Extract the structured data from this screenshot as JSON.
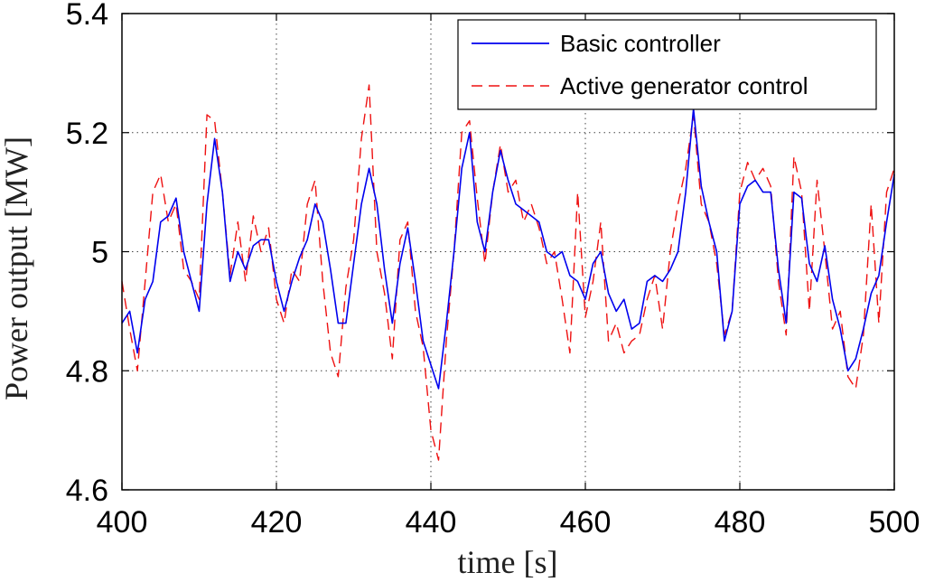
{
  "chart_data": {
    "type": "line",
    "title": "",
    "xlabel": "time [s]",
    "ylabel": "Power output [MW]",
    "xlim": [
      400,
      500
    ],
    "ylim": [
      4.6,
      5.4
    ],
    "xticks": [
      400,
      420,
      440,
      460,
      480,
      500
    ],
    "yticks": [
      4.6,
      4.8,
      5,
      5.2,
      5.4
    ],
    "xtick_labels": [
      "400",
      "420",
      "440",
      "460",
      "480",
      "500"
    ],
    "ytick_labels": [
      "4.6",
      "4.8",
      "5",
      "5.2",
      "5.4"
    ],
    "grid": true,
    "legend_position": "top-right",
    "series": [
      {
        "name": "Basic controller",
        "color": "#0000ee",
        "style": "solid",
        "x": [
          400,
          401,
          402,
          403,
          404,
          405,
          406,
          407,
          408,
          409,
          410,
          411,
          412,
          413,
          414,
          415,
          416,
          417,
          418,
          419,
          420,
          421,
          422,
          423,
          424,
          425,
          426,
          427,
          428,
          429,
          430,
          431,
          432,
          433,
          434,
          435,
          436,
          437,
          438,
          439,
          440,
          441,
          442,
          443,
          444,
          445,
          446,
          447,
          448,
          449,
          450,
          451,
          452,
          453,
          454,
          455,
          456,
          457,
          458,
          459,
          460,
          461,
          462,
          463,
          464,
          465,
          466,
          467,
          468,
          469,
          470,
          471,
          472,
          473,
          474,
          475,
          476,
          477,
          478,
          479,
          480,
          481,
          482,
          483,
          484,
          485,
          486,
          487,
          488,
          489,
          490,
          491,
          492,
          493,
          494,
          495,
          496,
          497,
          498,
          499,
          500
        ],
        "values": [
          4.88,
          4.9,
          4.83,
          4.92,
          4.95,
          5.05,
          5.06,
          5.09,
          5.0,
          4.95,
          4.9,
          5.08,
          5.19,
          5.1,
          4.95,
          5.0,
          4.97,
          5.01,
          5.02,
          5.02,
          4.95,
          4.9,
          4.95,
          4.99,
          5.02,
          5.08,
          5.05,
          4.97,
          4.88,
          4.88,
          4.98,
          5.08,
          5.14,
          5.08,
          4.97,
          4.88,
          4.98,
          5.04,
          4.95,
          4.85,
          4.81,
          4.77,
          4.88,
          5.0,
          5.14,
          5.2,
          5.05,
          5.0,
          5.1,
          5.17,
          5.12,
          5.08,
          5.07,
          5.06,
          5.05,
          5.0,
          4.99,
          5.0,
          4.96,
          4.95,
          4.92,
          4.98,
          5.0,
          4.93,
          4.9,
          4.92,
          4.87,
          4.88,
          4.95,
          4.96,
          4.95,
          4.97,
          5.0,
          5.1,
          5.24,
          5.11,
          5.05,
          5.0,
          4.85,
          4.9,
          5.08,
          5.11,
          5.12,
          5.1,
          5.1,
          4.97,
          4.88,
          5.1,
          5.09,
          4.98,
          4.95,
          5.01,
          4.92,
          4.87,
          4.8,
          4.82,
          4.87,
          4.93,
          4.96,
          5.05,
          5.13
        ]
      },
      {
        "name": "Active generator control",
        "color": "#ee1111",
        "style": "dashed",
        "x": [
          400,
          401,
          402,
          403,
          404,
          405,
          406,
          407,
          408,
          409,
          410,
          411,
          412,
          413,
          414,
          415,
          416,
          417,
          418,
          419,
          420,
          421,
          422,
          423,
          424,
          425,
          426,
          427,
          428,
          429,
          430,
          431,
          432,
          433,
          434,
          435,
          436,
          437,
          438,
          439,
          440,
          441,
          442,
          443,
          444,
          445,
          446,
          447,
          448,
          449,
          450,
          451,
          452,
          453,
          454,
          455,
          456,
          457,
          458,
          459,
          460,
          461,
          462,
          463,
          464,
          465,
          466,
          467,
          468,
          469,
          470,
          471,
          472,
          473,
          474,
          475,
          476,
          477,
          478,
          479,
          480,
          481,
          482,
          483,
          484,
          485,
          486,
          487,
          488,
          489,
          490,
          491,
          492,
          493,
          494,
          495,
          496,
          497,
          498,
          499,
          500
        ],
        "values": [
          4.95,
          4.87,
          4.8,
          4.95,
          5.1,
          5.13,
          5.05,
          5.08,
          4.97,
          4.95,
          4.92,
          5.23,
          5.22,
          5.1,
          4.96,
          5.05,
          4.95,
          5.06,
          5.0,
          5.04,
          4.92,
          4.88,
          4.97,
          4.95,
          5.08,
          5.12,
          4.95,
          4.83,
          4.79,
          4.94,
          5.02,
          5.19,
          5.28,
          5.0,
          4.93,
          4.82,
          5.02,
          5.05,
          4.9,
          4.84,
          4.7,
          4.65,
          4.85,
          5.0,
          5.2,
          5.22,
          5.09,
          4.98,
          5.1,
          5.18,
          5.1,
          5.12,
          5.05,
          5.08,
          5.04,
          4.98,
          5.0,
          4.92,
          4.83,
          5.1,
          4.89,
          4.95,
          5.05,
          4.85,
          4.88,
          4.83,
          4.85,
          4.86,
          4.92,
          4.96,
          4.87,
          5.0,
          5.08,
          5.14,
          5.23,
          5.08,
          5.05,
          4.98,
          4.86,
          4.9,
          5.1,
          5.15,
          5.12,
          5.14,
          5.11,
          4.95,
          4.86,
          5.16,
          5.1,
          4.9,
          5.12,
          5.0,
          4.87,
          4.9,
          4.79,
          4.77,
          4.86,
          5.08,
          4.88,
          5.1,
          5.14
        ]
      }
    ]
  }
}
